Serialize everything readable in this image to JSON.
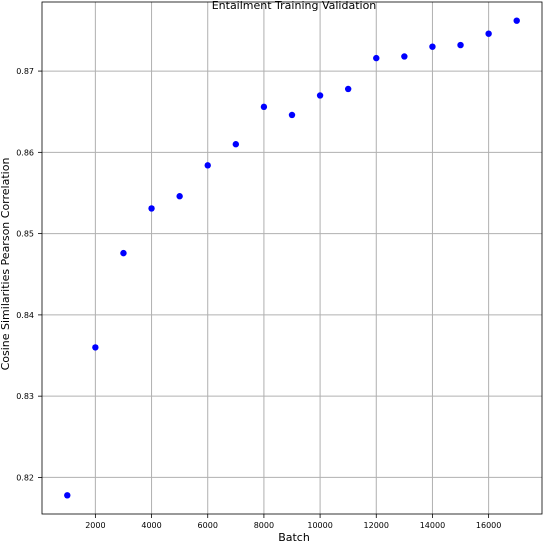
{
  "chart_data": {
    "type": "scatter",
    "title": "Entailment Training Validation",
    "xlabel": "Batch",
    "ylabel": "Cosine Similarities Pearson Correlation",
    "xlim": [
      100,
      17900
    ],
    "ylim": [
      0.8155,
      0.8785
    ],
    "grid": true,
    "marker_color": "#0000ff",
    "x_ticks": [
      2000,
      4000,
      6000,
      8000,
      10000,
      12000,
      14000,
      16000
    ],
    "y_ticks": [
      0.82,
      0.83,
      0.84,
      0.85,
      0.86,
      0.87
    ],
    "y_tick_labels": [
      "0.82",
      "0.83",
      "0.84",
      "0.85",
      "0.86",
      "0.87"
    ],
    "series": [
      {
        "x": [
          1000,
          2000,
          3000,
          4000,
          5000,
          6000,
          7000,
          8000,
          9000,
          10000,
          11000,
          12000,
          13000,
          14000,
          15000,
          16000,
          17000
        ],
        "y": [
          0.8178,
          0.836,
          0.8476,
          0.8531,
          0.8546,
          0.8584,
          0.861,
          0.8656,
          0.8646,
          0.867,
          0.8678,
          0.8716,
          0.8718,
          0.873,
          0.8732,
          0.8746,
          0.8762
        ]
      }
    ]
  }
}
